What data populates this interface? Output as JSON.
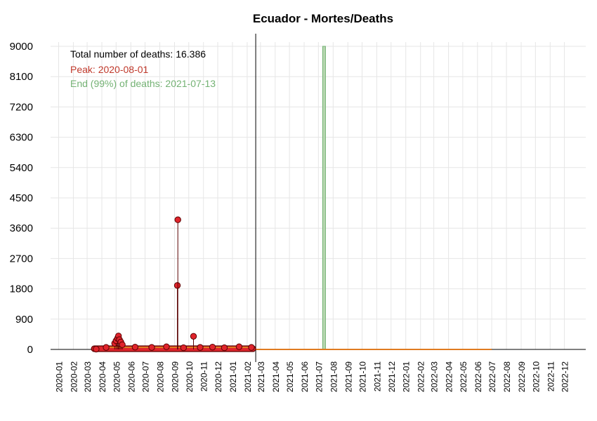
{
  "chart_data": {
    "type": "bar",
    "title": "Ecuador - Mortes/Deaths",
    "xlabel": "",
    "ylabel": "",
    "ylim": [
      0,
      9000
    ],
    "yticks": [
      "9000",
      "8100",
      "7200",
      "6300",
      "5400",
      "4500",
      "3600",
      "2700",
      "1800",
      "900",
      "0"
    ],
    "x_tick_labels": [
      "2020-01",
      "2020-02",
      "2020-03",
      "2020-04",
      "2020-05",
      "2020-06",
      "2020-07",
      "2020-08",
      "2020-09",
      "2020-10",
      "2020-11",
      "2020-12",
      "2021-01",
      "2021-02",
      "2021-03",
      "2021-04",
      "2021-05",
      "2021-06",
      "2021-07",
      "2021-08",
      "2021-09",
      "2021-10",
      "2021-11",
      "2021-12",
      "2022-01",
      "2022-02",
      "2022-03",
      "2022-04",
      "2022-05",
      "2022-06",
      "2022-07",
      "2022-08",
      "2022-09",
      "2022-10",
      "2022-11",
      "2022-12"
    ],
    "x_range": [
      "2019-12-15",
      "2023-01-15"
    ],
    "grid": true,
    "annotations": {
      "total": "Total number of deaths: 16.386",
      "peak": "Peak: 2020-08-01",
      "end": "End (99%) of deaths: 2021-07-13"
    },
    "today_line": "2021-02-19",
    "end_band": [
      "2021-07-10",
      "2021-07-14"
    ],
    "fit_line": {
      "start": "2021-02-19",
      "end": "2022-07-01",
      "value": 0
    },
    "series": [
      {
        "values": [
          {
            "date": "2020-03-20",
            "value": 10
          },
          {
            "date": "2020-04-10",
            "value": 60
          },
          {
            "date": "2020-04-28",
            "value": 180
          },
          {
            "date": "2020-05-01",
            "value": 260
          },
          {
            "date": "2020-05-04",
            "value": 330
          },
          {
            "date": "2020-05-06",
            "value": 400
          },
          {
            "date": "2020-05-08",
            "value": 290
          },
          {
            "date": "2020-05-11",
            "value": 220
          },
          {
            "date": "2020-05-14",
            "value": 140
          },
          {
            "date": "2020-06-10",
            "value": 70
          },
          {
            "date": "2020-07-15",
            "value": 60
          },
          {
            "date": "2020-08-15",
            "value": 80
          },
          {
            "date": "2020-09-07",
            "value": 1900
          },
          {
            "date": "2020-09-08",
            "value": 3850
          },
          {
            "date": "2020-09-20",
            "value": 50
          },
          {
            "date": "2020-10-11",
            "value": 390
          },
          {
            "date": "2020-10-25",
            "value": 60
          },
          {
            "date": "2020-11-20",
            "value": 70
          },
          {
            "date": "2020-12-15",
            "value": 50
          },
          {
            "date": "2021-01-15",
            "value": 80
          },
          {
            "date": "2021-02-10",
            "value": 60
          }
        ]
      }
    ],
    "colors": {
      "title": "#000000",
      "total_text": "#000000",
      "peak_text": "#c0392b",
      "end_text": "#74b274",
      "point": "#e0242c",
      "point_edge": "#5a0000",
      "band_fill": "#b7d7b0",
      "band_edge": "#74b274",
      "fit_line": "#e07b20",
      "grid": "#e6e6e6",
      "axis": "#000000"
    }
  }
}
